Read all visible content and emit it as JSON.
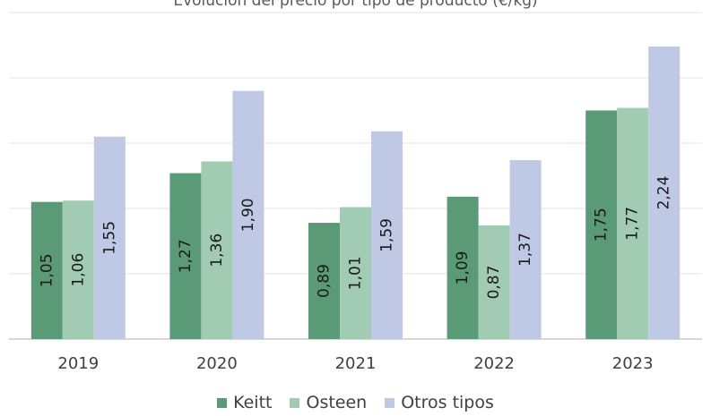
{
  "chart_data": {
    "type": "bar",
    "title": "Evolución del precio por tipo de producto (€/kg)",
    "categories": [
      "2019",
      "2020",
      "2021",
      "2022",
      "2023"
    ],
    "series": [
      {
        "name": "Keitt",
        "color": "#5b9a77",
        "values": [
          1.05,
          1.27,
          0.89,
          1.09,
          1.75
        ],
        "labels": [
          "1,05",
          "1,27",
          "0,89",
          "1,09",
          "1,75"
        ]
      },
      {
        "name": "Osteen",
        "color": "#a2cbb4",
        "values": [
          1.06,
          1.36,
          1.01,
          0.87,
          1.77
        ],
        "labels": [
          "1,06",
          "1,36",
          "1,01",
          "0,87",
          "1,77"
        ]
      },
      {
        "name": "Otros tipos",
        "color": "#bfc9e6",
        "values": [
          1.55,
          1.9,
          1.59,
          1.37,
          2.24
        ],
        "labels": [
          "1,55",
          "1,90",
          "1,59",
          "1,37",
          "2,24"
        ]
      }
    ],
    "ylim": [
      0,
      2.5
    ],
    "y_gridlines": [
      0.5,
      1.0,
      1.5,
      2.0,
      2.5
    ],
    "grid": true,
    "legend_position": "bottom"
  }
}
